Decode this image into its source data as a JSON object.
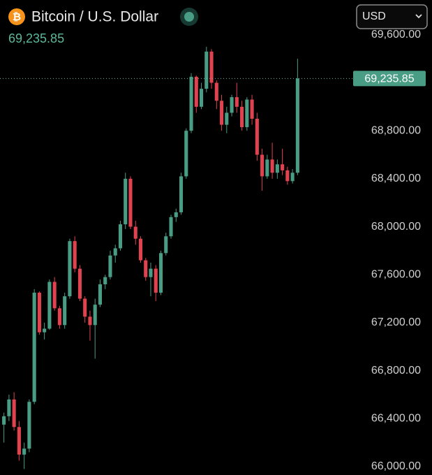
{
  "chart_data": {
    "type": "candlestick",
    "title": "Bitcoin / U.S. Dollar",
    "currency": "USD",
    "last_value": {
      "value": 69235.85,
      "label": "69,235.85"
    },
    "up_color": "#4a9d85",
    "down_color": "#e0434f",
    "ylim": [
      65930,
      69890
    ],
    "yticks": [
      {
        "value": 66000,
        "label": "66,000.00"
      },
      {
        "value": 66400,
        "label": "66,400.00"
      },
      {
        "value": 66800,
        "label": "66,800.00"
      },
      {
        "value": 67200,
        "label": "67,200.00"
      },
      {
        "value": 67600,
        "label": "67,600.00"
      },
      {
        "value": 68000,
        "label": "68,000.00"
      },
      {
        "value": 68400,
        "label": "68,400.00"
      },
      {
        "value": 68800,
        "label": "68,800.00"
      },
      {
        "value": 69600,
        "label": "69,600.00"
      }
    ],
    "open": [
      66350,
      66420,
      66560,
      66330,
      66100,
      66150,
      66540,
      67450,
      67120,
      67150,
      67540,
      67320,
      67180,
      67420,
      67880,
      67650,
      67400,
      67250,
      67180,
      67350,
      67520,
      67580,
      67760,
      67820,
      68020,
      68400,
      68000,
      67900,
      67720,
      67580,
      67650,
      67450,
      67780,
      67920,
      68080,
      68120,
      68420,
      68800,
      69250,
      69000,
      69150,
      69460,
      69200,
      69050,
      68850,
      68950,
      69080,
      69000,
      68830,
      69060,
      68900,
      68600,
      68420,
      68560,
      68450,
      68520,
      68470,
      68380,
      68450
    ],
    "high": [
      66450,
      66600,
      66620,
      66380,
      66200,
      66560,
      67480,
      67460,
      67200,
      67560,
      67580,
      67340,
      67450,
      67900,
      67920,
      67680,
      67420,
      67300,
      67400,
      67560,
      67600,
      67800,
      67850,
      68050,
      68450,
      68420,
      68050,
      67920,
      67740,
      67700,
      67680,
      67800,
      67950,
      68100,
      68150,
      68450,
      68820,
      69280,
      69260,
      69200,
      69500,
      69480,
      69220,
      69100,
      69000,
      69100,
      69200,
      69050,
      69080,
      69100,
      68950,
      68650,
      68600,
      68700,
      68560,
      68650,
      68500,
      68480,
      69400
    ],
    "low": [
      66200,
      66380,
      66300,
      66050,
      65980,
      66120,
      66520,
      67100,
      67060,
      67140,
      67300,
      67150,
      67150,
      67400,
      67620,
      67380,
      67200,
      67050,
      66900,
      67330,
      67480,
      67560,
      67700,
      67800,
      67980,
      67980,
      67850,
      67700,
      67550,
      67420,
      67380,
      67430,
      67760,
      67900,
      68040,
      68100,
      68400,
      68780,
      68950,
      68980,
      69120,
      69150,
      68980,
      68800,
      68780,
      68920,
      68950,
      68800,
      68800,
      68850,
      68550,
      68300,
      68400,
      68400,
      68400,
      68430,
      68350,
      68360,
      68430
    ],
    "close": [
      66420,
      66560,
      66330,
      66100,
      66150,
      66540,
      67450,
      67120,
      67150,
      67540,
      67320,
      67180,
      67420,
      67880,
      67650,
      67400,
      67250,
      67180,
      67350,
      67520,
      67580,
      67760,
      67820,
      68020,
      68400,
      68000,
      67900,
      67720,
      67580,
      67650,
      67450,
      67780,
      67920,
      68080,
      68120,
      68420,
      68800,
      69250,
      69000,
      69150,
      69460,
      69200,
      69050,
      68850,
      68950,
      69080,
      69000,
      68830,
      69060,
      68900,
      68600,
      68420,
      68560,
      68450,
      68520,
      68470,
      68380,
      68450,
      69235.85
    ]
  }
}
